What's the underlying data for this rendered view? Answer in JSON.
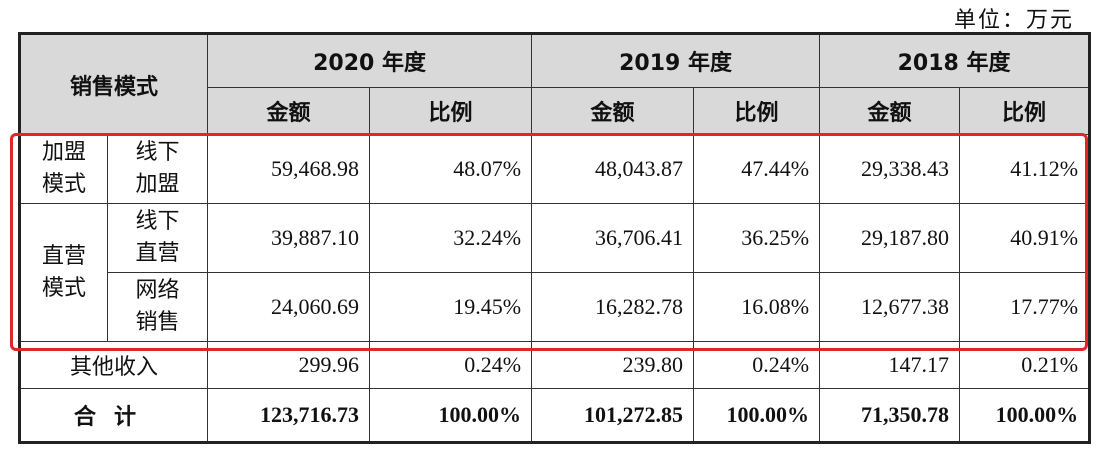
{
  "unit_label": "单位：万元",
  "header": {
    "mode_label": "销售模式",
    "years": [
      "2020 年度",
      "2019 年度",
      "2018 年度"
    ],
    "amount_label": "金额",
    "ratio_label": "比例"
  },
  "rows": {
    "franchise": {
      "category": [
        "加盟",
        "模式"
      ],
      "sub": [
        "线下",
        "加盟"
      ],
      "values": [
        "59,468.98",
        "48.07%",
        "48,043.87",
        "47.44%",
        "29,338.43",
        "41.12%"
      ]
    },
    "direct_category": [
      "直营",
      "模式"
    ],
    "direct_offline": {
      "sub": [
        "线下",
        "直营"
      ],
      "values": [
        "39,887.10",
        "32.24%",
        "36,706.41",
        "36.25%",
        "29,187.80",
        "40.91%"
      ]
    },
    "direct_online": {
      "sub": [
        "网络",
        "销售"
      ],
      "values": [
        "24,060.69",
        "19.45%",
        "16,282.78",
        "16.08%",
        "12,677.38",
        "17.77%"
      ]
    },
    "other": {
      "label": "其他收入",
      "values": [
        "299.96",
        "0.24%",
        "239.80",
        "0.24%",
        "147.17",
        "0.21%"
      ]
    },
    "total": {
      "label": "合计",
      "values": [
        "123,716.73",
        "100.00%",
        "101,272.85",
        "100.00%",
        "71,350.78",
        "100.00%"
      ]
    }
  },
  "footer_partial": "...",
  "colors": {
    "header_bg": "#d9d9d9",
    "highlight_border": "#e0252b"
  }
}
